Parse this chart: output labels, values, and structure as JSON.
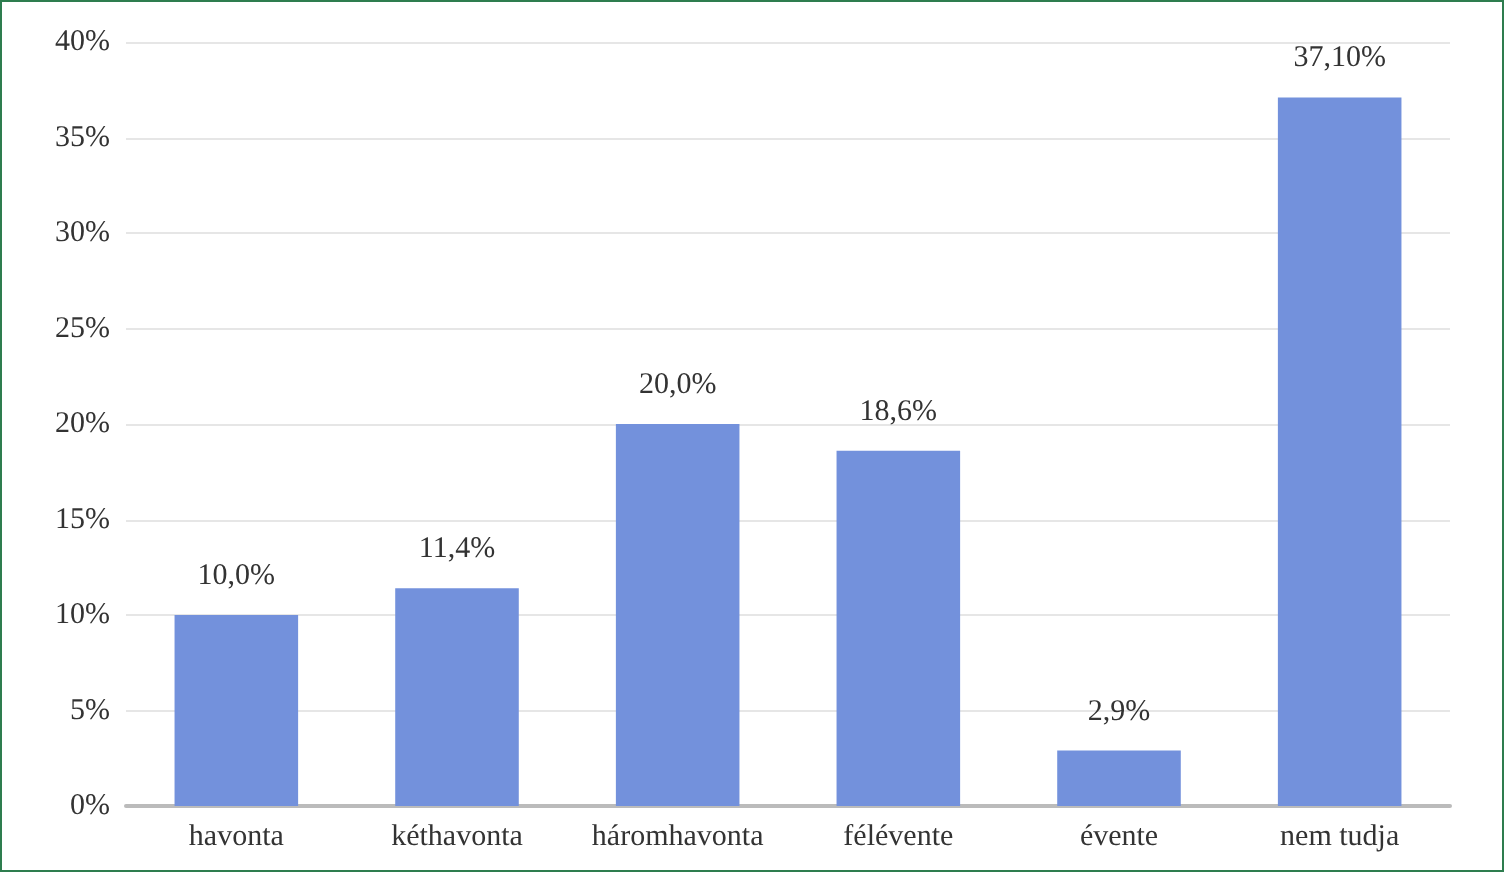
{
  "chart_data": {
    "type": "bar",
    "categories": [
      "havonta",
      "kéthavonta",
      "háromhavonta",
      "félévente",
      "évente",
      "nem tudja"
    ],
    "values": [
      10.0,
      11.4,
      20.0,
      18.6,
      2.9,
      37.1
    ],
    "value_labels": [
      "10,0%",
      "11,4%",
      "20,0%",
      "18,6%",
      "2,9%",
      "37,10%"
    ],
    "color": "#7391dc",
    "ylim": [
      0,
      40
    ],
    "yticks": [
      {
        "value": 0,
        "label": "0%"
      },
      {
        "value": 5,
        "label": "5%"
      },
      {
        "value": 10,
        "label": "10%"
      },
      {
        "value": 15,
        "label": "15%"
      },
      {
        "value": 20,
        "label": "20%"
      },
      {
        "value": 25,
        "label": "25%"
      },
      {
        "value": 30,
        "label": "30%"
      },
      {
        "value": 35,
        "label": "35%"
      },
      {
        "value": 40,
        "label": "40%"
      }
    ],
    "grid": "y"
  }
}
